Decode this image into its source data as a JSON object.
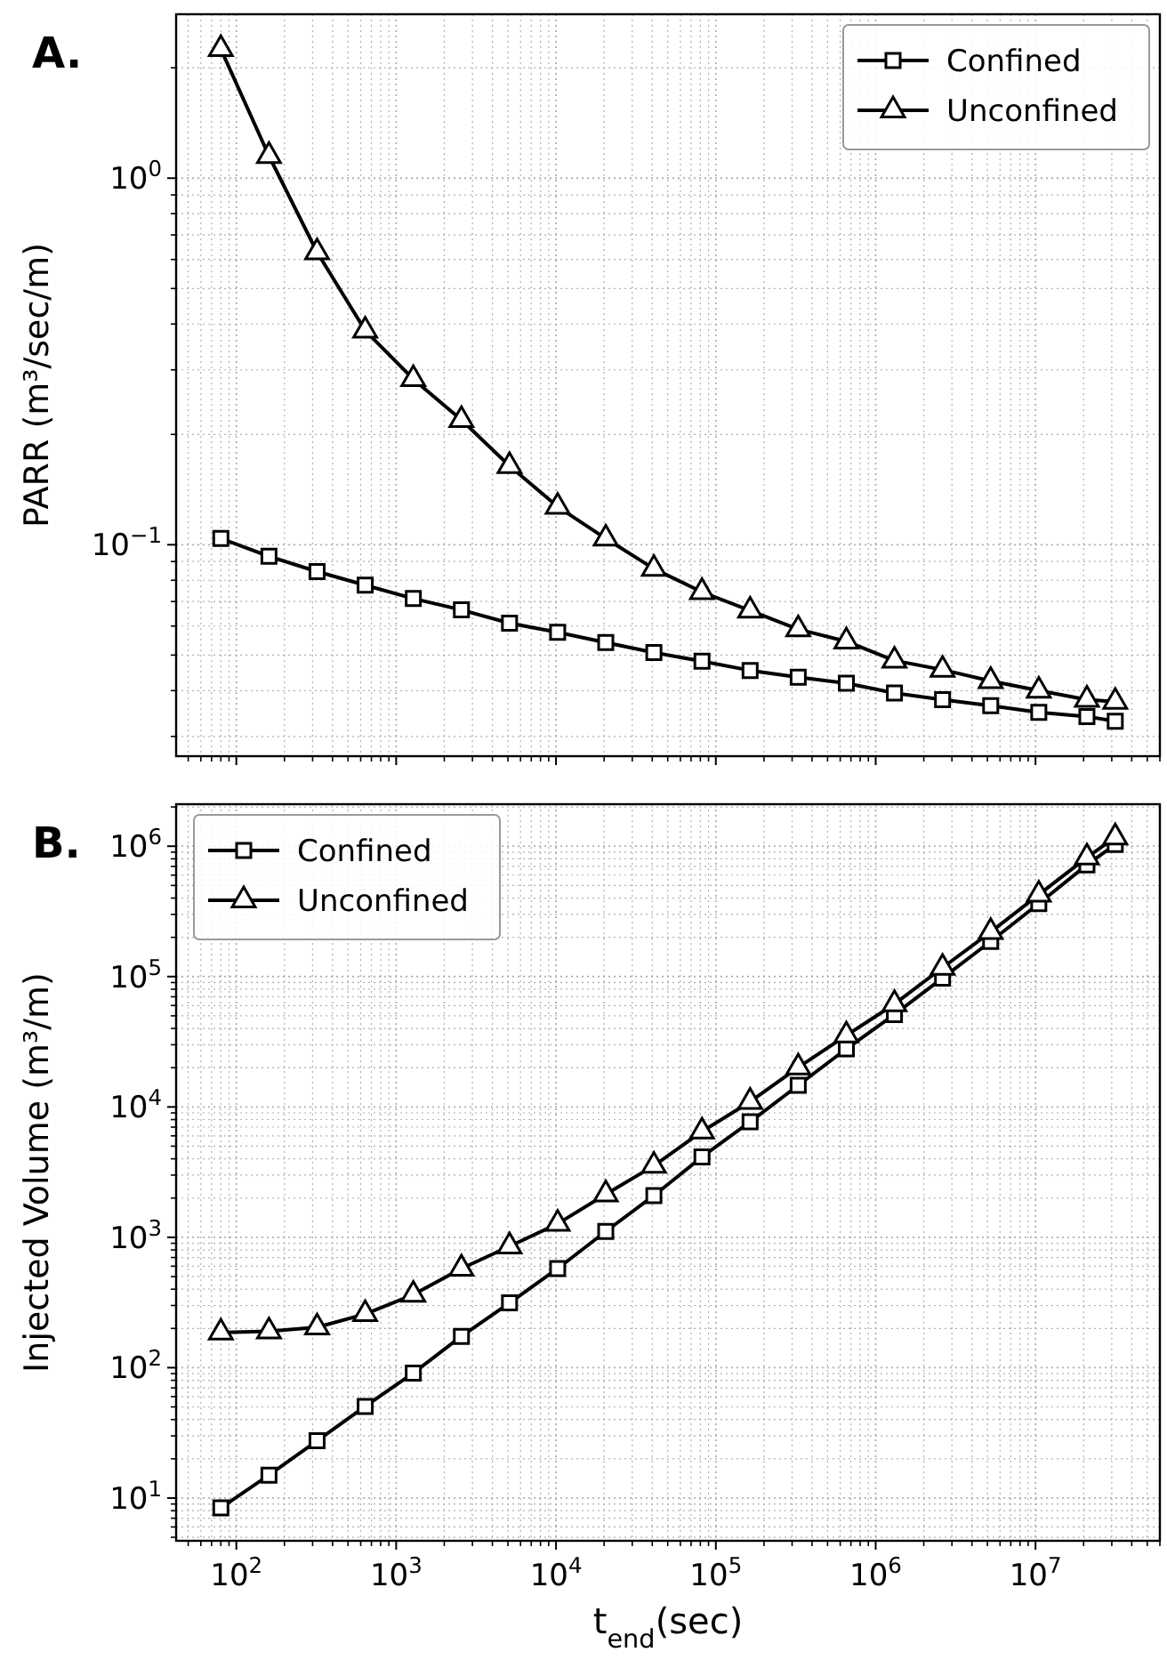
{
  "chart_data": [
    {
      "type": "line",
      "title": "A.",
      "ylabel": "PARR (m³/sec/m)",
      "log": "xy",
      "grid": true,
      "legend": "top right",
      "tick_labels": "y",
      "line_style": "solid",
      "x": [
        80,
        160,
        320,
        640,
        1280,
        2560,
        5120,
        10240,
        20480,
        40960,
        81920,
        163840,
        327680,
        655360,
        1310720,
        2621440,
        5242880,
        10485760,
        20971520,
        31536000
      ],
      "xlim": [
        42,
        60000000
      ],
      "xticks": [
        {
          "value": 100,
          "label": null
        },
        {
          "value": 1000,
          "label": null
        },
        {
          "value": 10000,
          "label": null
        },
        {
          "value": 100000,
          "label": null
        },
        {
          "value": 1000000,
          "label": null
        },
        {
          "value": 10000000,
          "label": null
        }
      ],
      "ylim": [
        0.0265,
        2.8
      ],
      "yticks": [
        {
          "value": 0.1,
          "label": "10$^{−1}$"
        },
        {
          "value": 1,
          "label": "10$^{0}$"
        }
      ],
      "series": [
        {
          "name": "Confined",
          "color": "#000000",
          "marker": "square",
          "values": [
            0.104,
            0.093,
            0.0845,
            0.0776,
            0.0713,
            0.0664,
            0.0611,
            0.0577,
            0.0541,
            0.0508,
            0.0481,
            0.0454,
            0.0435,
            0.0419,
            0.0394,
            0.0378,
            0.0364,
            0.0349,
            0.034,
            0.033
          ]
        },
        {
          "name": "Unconfined",
          "color": "#000000",
          "marker": "triangle",
          "values": [
            2.25,
            1.15,
            0.628,
            0.384,
            0.283,
            0.219,
            0.164,
            0.127,
            0.104,
            0.086,
            0.0743,
            0.0661,
            0.0588,
            0.0545,
            0.0483,
            0.0456,
            0.0425,
            0.04,
            0.0378,
            0.0373
          ]
        }
      ]
    },
    {
      "type": "line",
      "title": "B.",
      "xlabel": "t$_{end}$(sec)",
      "ylabel": "Injected Volume (m³/m)",
      "log": "xy",
      "grid": true,
      "legend": "top left",
      "line_style": "solid",
      "x": [
        80,
        160,
        320,
        640,
        1280,
        2560,
        5120,
        10240,
        20480,
        40960,
        81920,
        163840,
        327680,
        655360,
        1310720,
        2621440,
        5242880,
        10485760,
        20971520,
        31536000
      ],
      "xlim": [
        42,
        60000000
      ],
      "xticks": [
        {
          "value": 100,
          "label": "10$^{2}$"
        },
        {
          "value": 1000,
          "label": "10$^{3}$"
        },
        {
          "value": 10000,
          "label": "10$^{4}$"
        },
        {
          "value": 100000,
          "label": "10$^{5}$"
        },
        {
          "value": 1000000,
          "label": "10$^{6}$"
        },
        {
          "value": 10000000,
          "label": "10$^{7}$"
        }
      ],
      "ylim": [
        4.7,
        2100000
      ],
      "yticks": [
        {
          "value": 10,
          "label": "10$^{1}$"
        },
        {
          "value": 100,
          "label": "10$^{2}$"
        },
        {
          "value": 1000,
          "label": "10$^{3}$"
        },
        {
          "value": 10000,
          "label": "10$^{4}$"
        },
        {
          "value": 100000,
          "label": "10$^{5}$"
        },
        {
          "value": 1000000,
          "label": "10$^{6}$"
        }
      ],
      "series": [
        {
          "name": "Confined",
          "color": "#000000",
          "marker": "square",
          "values": [
            8.4,
            15,
            27.5,
            50.5,
            91,
            174,
            314,
            576,
            1110,
            2090,
            4140,
            7690,
            14650,
            27900,
            51100,
            97500,
            186000,
            363000,
            720000,
            1030000
          ]
        },
        {
          "name": "Unconfined",
          "color": "#000000",
          "marker": "triangle",
          "values": [
            186,
            190,
            204,
            258,
            363,
            576,
            853,
            1270,
            2140,
            3540,
            6480,
            10960,
            20100,
            35400,
            61500,
            117000,
            220000,
            425000,
            820000,
            1170000
          ]
        }
      ]
    }
  ]
}
